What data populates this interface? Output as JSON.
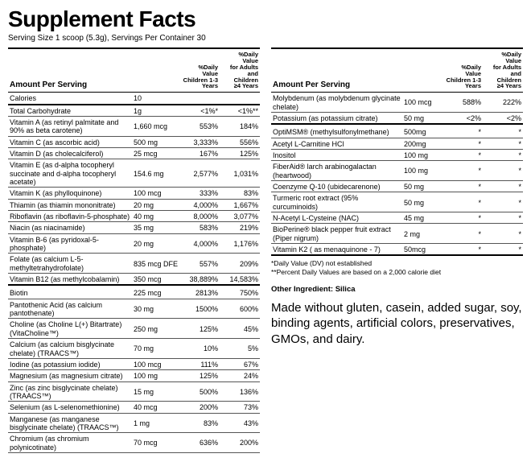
{
  "title": "Supplement Facts",
  "serving_line": "Serving Size 1 scoop (5.3g), Servings Per Container 30",
  "header": {
    "amount_per_serving": "Amount Per Serving",
    "dv_child": "%Daily Value\nChildren 1-3 Years",
    "dv_adult": "%Daily Value\nfor Adults and\nChildren\n≥4 Years"
  },
  "left_rows": [
    {
      "name": "Calories",
      "amt": "10",
      "dv1": "",
      "dv2": "",
      "style": "thick"
    },
    {
      "name": "Total Carbohydrate",
      "amt": "1g",
      "dv1": "<1%*",
      "dv2": "<1%**",
      "style": ""
    },
    {
      "name": "Vitamin A (as retinyl palmitate and 90% as beta carotene)",
      "amt": "1,660 mcg",
      "dv1": "553%",
      "dv2": "184%",
      "style": ""
    },
    {
      "name": "Vitamin C (as ascorbic acid)",
      "amt": "500 mg",
      "dv1": "3,333%",
      "dv2": "556%",
      "style": ""
    },
    {
      "name": "Vitamin D (as cholecalciferol)",
      "amt": "25 mcg",
      "dv1": "167%",
      "dv2": "125%",
      "style": ""
    },
    {
      "name": "Vitamin E (as d-alpha tocopheryl succinate and d-alpha tocopheryl acetate)",
      "amt": "154.6 mg",
      "dv1": "2,577%",
      "dv2": "1,031%",
      "style": ""
    },
    {
      "name": "Vitamin K (as phylloquinone)",
      "amt": "100 mcg",
      "dv1": "333%",
      "dv2": "83%",
      "style": ""
    },
    {
      "name": "Thiamin (as thiamin mononitrate)",
      "amt": "20 mg",
      "dv1": "4,000%",
      "dv2": "1,667%",
      "style": ""
    },
    {
      "name": "Riboflavin (as riboflavin-5-phosphate)",
      "amt": "40 mg",
      "dv1": "8,000%",
      "dv2": "3,077%",
      "style": ""
    },
    {
      "name": "Niacin (as niacinamide)",
      "amt": "35 mg",
      "dv1": "583%",
      "dv2": "219%",
      "style": ""
    },
    {
      "name": "Vitamin B-6 (as pyridoxal-5-phosphate)",
      "amt": "20 mg",
      "dv1": "4,000%",
      "dv2": "1,176%",
      "style": ""
    },
    {
      "name": "Folate  (as calcium L-5-methyltetrahydrofolate)",
      "amt": "835 mcg DFE",
      "dv1": "557%",
      "dv2": "209%",
      "style": ""
    },
    {
      "name": "Vitamin B12 (as methylcobalamin)",
      "amt": "350 mcg",
      "dv1": "38,889%",
      "dv2": "14,583%",
      "style": "thick"
    },
    {
      "style": "gap"
    },
    {
      "name": "Biotin",
      "amt": "225 mcg",
      "dv1": "2813%",
      "dv2": "750%",
      "style": ""
    },
    {
      "name": "Pantothenic Acid (as calcium pantothenate)",
      "amt": "30 mg",
      "dv1": "1500%",
      "dv2": "600%",
      "style": ""
    },
    {
      "name": "Choline (as Choline L(+) Bitartrate) (VitaCholine™)",
      "amt": "250 mg",
      "dv1": "125%",
      "dv2": "45%",
      "style": ""
    },
    {
      "name": "Calcium (as calcium bisglycinate chelate) (TRAACS™)",
      "amt": "70 mg",
      "dv1": "10%",
      "dv2": "5%",
      "style": ""
    },
    {
      "name": "Iodine (as potassium iodide)",
      "amt": "100 mcg",
      "dv1": "111%",
      "dv2": "67%",
      "style": ""
    },
    {
      "name": "Magnesium (as magnesium citrate)",
      "amt": "100 mg",
      "dv1": "125%",
      "dv2": "24%",
      "style": ""
    },
    {
      "name": "Zinc (as zinc bisglycinate chelate) (TRAACS™)",
      "amt": "15 mg",
      "dv1": "500%",
      "dv2": "136%",
      "style": ""
    },
    {
      "name": "Selenium (as L-selenomethionine)",
      "amt": "40 mcg",
      "dv1": "200%",
      "dv2": "73%",
      "style": ""
    },
    {
      "name": "Manganese (as manganese bisglycinate chelate) (TRAACS™)",
      "amt": "1 mg",
      "dv1": "83%",
      "dv2": "43%",
      "style": ""
    },
    {
      "name": "Chromium (as chromium polynicotinate)",
      "amt": "70 mcg",
      "dv1": "636%",
      "dv2": "200%",
      "style": ""
    }
  ],
  "right_rows": [
    {
      "name": "Molybdenum (as molybdenum glycinate chelate)",
      "amt": "100 mcg",
      "dv1": "588%",
      "dv2": "222%",
      "style": ""
    },
    {
      "name": "Potassium (as potassium citrate)",
      "amt": "50 mg",
      "dv1": "<2%",
      "dv2": "<2%",
      "style": "thick"
    },
    {
      "style": "gap"
    },
    {
      "name": "OptiMSM® (methylsulfonylmethane)",
      "amt": "500mg",
      "dv1": "*",
      "dv2": "*",
      "style": ""
    },
    {
      "name": "Acetyl L-Carnitine HCl",
      "amt": "200mg",
      "dv1": "*",
      "dv2": "*",
      "style": ""
    },
    {
      "name": "Inositol",
      "amt": "100 mg",
      "dv1": "*",
      "dv2": "*",
      "style": ""
    },
    {
      "name": "FiberAid® larch arabinogalactan (heartwood)",
      "amt": "100 mg",
      "dv1": "*",
      "dv2": "*",
      "style": ""
    },
    {
      "name": "Coenzyme Q-10 (ubidecarenone)",
      "amt": "50 mg",
      "dv1": "*",
      "dv2": "*",
      "style": ""
    },
    {
      "name": "Turmeric root extract (95% curcuminoids)",
      "amt": "50 mg",
      "dv1": "*",
      "dv2": "*",
      "style": ""
    },
    {
      "name": "N-Acetyl L-Cysteine (NAC)",
      "amt": "45 mg",
      "dv1": "*",
      "dv2": "*",
      "style": ""
    },
    {
      "name": "BioPerine®  black pepper fruit extract (Piper nigrum)",
      "amt": "2 mg",
      "dv1": "*",
      "dv2": "*",
      "style": ""
    },
    {
      "name": "Vitamin K2 ( as menaquinone - 7)",
      "amt": "50mcg",
      "dv1": "*",
      "dv2": "*",
      "style": "thick"
    }
  ],
  "notes": {
    "line1": "*Daily Value (DV) not established",
    "line2": "**Percent Daily Values are based on a 2,000 calorie diet"
  },
  "other_ingredient": "Other Ingredient: Silica",
  "made_without": "Made without gluten, casein, added sugar, soy, binding agents, artificial colors, preservatives, GMOs, and dairy."
}
